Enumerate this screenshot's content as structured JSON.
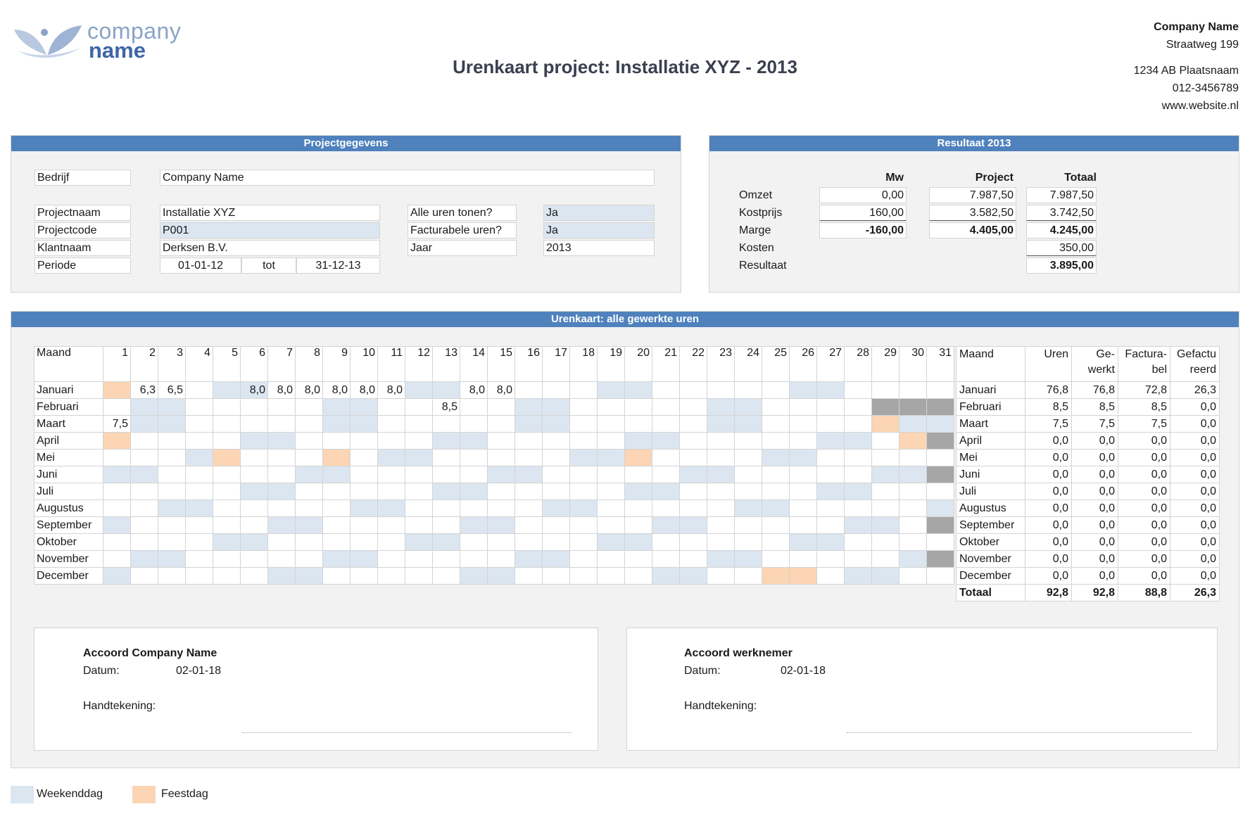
{
  "logo": {
    "line1": "company",
    "line2": "name"
  },
  "title": "Urenkaart project: Installatie XYZ - 2013",
  "company": {
    "name": "Company Name",
    "street": "Straatweg 199",
    "city": "1234 AB Plaatsnaam",
    "phone": "012-3456789",
    "website": "www.website.nl"
  },
  "project": {
    "heading": "Projectgegevens",
    "bedrijf_label": "Bedrijf",
    "bedrijf_value": "Company Name",
    "projectnaam_label": "Projectnaam",
    "projectnaam_value": "Installatie XYZ",
    "projectcode_label": "Projectcode",
    "projectcode_value": "P001",
    "klantnaam_label": "Klantnaam",
    "klantnaam_value": "Derksen B.V.",
    "periode_label": "Periode",
    "periode_from": "01-01-12",
    "periode_tot": "tot",
    "periode_to": "31-12-13",
    "alle_uren_label": "Alle uren tonen?",
    "alle_uren_value": "Ja",
    "facturabele_label": "Facturabele uren?",
    "facturabele_value": "Ja",
    "jaar_label": "Jaar",
    "jaar_value": "2013"
  },
  "result": {
    "heading": "Resultaat 2013",
    "columns": [
      "Mw",
      "Project",
      "Totaal"
    ],
    "rows": [
      {
        "label": "Omzet",
        "values": [
          "0,00",
          "7.987,50",
          "7.987,50"
        ]
      },
      {
        "label": "Kostprijs",
        "values": [
          "160,00",
          "3.582,50",
          "3.742,50"
        ]
      },
      {
        "label": "Marge",
        "values": [
          "-160,00",
          "4.405,00",
          "4.245,00"
        ]
      },
      {
        "label": "Kosten",
        "values": [
          "",
          "",
          "350,00"
        ]
      },
      {
        "label": "Resultaat",
        "values": [
          "",
          "",
          "3.895,00"
        ]
      }
    ]
  },
  "timesheet": {
    "heading": "Urenkaart: alle gewerkte uren",
    "month_header": "Maand",
    "months": [
      "Januari",
      "Februari",
      "Maart",
      "April",
      "Mei",
      "Juni",
      "Juli",
      "Augustus",
      "September",
      "Oktober",
      "November",
      "December"
    ],
    "hours": {
      "0": {
        "2": "6,3",
        "3": "6,5",
        "6": "8,0",
        "7": "8,0",
        "8": "8,0",
        "9": "8,0",
        "10": "8,0",
        "11": "8,0",
        "14": "8,0",
        "15": "8,0"
      },
      "1": {
        "13": "8,5"
      },
      "2": {
        "1": "7,5"
      }
    },
    "summary_headers": [
      "Maand",
      "Uren",
      "Ge-\nwerkt",
      "Factura-\nbel",
      "Gefactu\nreerd"
    ],
    "summary_rows": [
      [
        "Januari",
        "76,8",
        "76,8",
        "72,8",
        "26,3"
      ],
      [
        "Februari",
        "8,5",
        "8,5",
        "8,5",
        "0,0"
      ],
      [
        "Maart",
        "7,5",
        "7,5",
        "7,5",
        "0,0"
      ],
      [
        "April",
        "0,0",
        "0,0",
        "0,0",
        "0,0"
      ],
      [
        "Mei",
        "0,0",
        "0,0",
        "0,0",
        "0,0"
      ],
      [
        "Juni",
        "0,0",
        "0,0",
        "0,0",
        "0,0"
      ],
      [
        "Juli",
        "0,0",
        "0,0",
        "0,0",
        "0,0"
      ],
      [
        "Augustus",
        "0,0",
        "0,0",
        "0,0",
        "0,0"
      ],
      [
        "September",
        "0,0",
        "0,0",
        "0,0",
        "0,0"
      ],
      [
        "Oktober",
        "0,0",
        "0,0",
        "0,0",
        "0,0"
      ],
      [
        "November",
        "0,0",
        "0,0",
        "0,0",
        "0,0"
      ],
      [
        "December",
        "0,0",
        "0,0",
        "0,0",
        "0,0"
      ]
    ],
    "total_row": [
      "Totaal",
      "92,8",
      "92,8",
      "88,8",
      "26,3"
    ]
  },
  "approval": {
    "left_title": "Accoord Company Name",
    "left_datum_label": "Datum:",
    "left_datum_value": "02-01-18",
    "left_sign_label": "Handtekening:",
    "right_title": "Accoord werknemer",
    "right_datum_label": "Datum:",
    "right_datum_value": "02-01-18",
    "right_sign_label": "Handtekening:"
  },
  "legend": {
    "weekend": "Weekenddag",
    "holiday": "Feestdag"
  },
  "colors": {
    "header_blue": "#4f81bd",
    "weekend": "#dce6f1",
    "holiday": "#fcd5b4",
    "unavailable": "#a6a6a6"
  }
}
